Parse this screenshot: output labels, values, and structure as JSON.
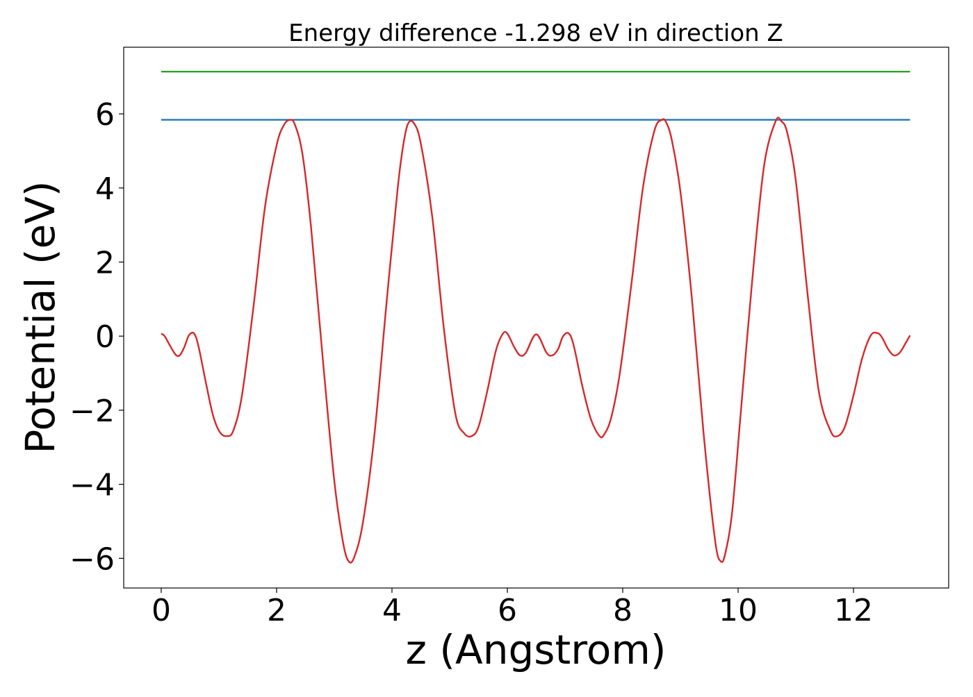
{
  "chart_data": {
    "type": "line",
    "title": "Energy difference -1.298 eV in direction Z",
    "xlabel": "z (Angstrom)",
    "ylabel": "Potential (eV)",
    "xlim": [
      -0.65,
      13.65
    ],
    "ylim": [
      -6.8,
      7.8
    ],
    "xticks": [
      0,
      2,
      4,
      6,
      8,
      10,
      12
    ],
    "yticks": [
      -6,
      -4,
      -2,
      0,
      2,
      4,
      6
    ],
    "xtick_labels": [
      "0",
      "2",
      "4",
      "6",
      "8",
      "10",
      "12"
    ],
    "ytick_labels": [
      "−6",
      "−4",
      "−2",
      "0",
      "2",
      "4",
      "6"
    ],
    "grid": false,
    "series": [
      {
        "color": "#2ca02c",
        "style": "horizontal",
        "x": [
          0,
          12.98
        ],
        "y": [
          7.14,
          7.14
        ]
      },
      {
        "color": "#1f77b4",
        "style": "horizontal",
        "x": [
          0,
          12.98
        ],
        "y": [
          5.84,
          5.84
        ]
      },
      {
        "color": "#d62728",
        "style": "smooth",
        "x": [
          0,
          0.06,
          0.15,
          0.25,
          0.32,
          0.4,
          0.48,
          0.57,
          0.65,
          0.78,
          0.9,
          1.02,
          1.14,
          1.25,
          1.4,
          1.6,
          1.8,
          2.0,
          2.12,
          2.23,
          2.32,
          2.45,
          2.6,
          2.8,
          3.0,
          3.15,
          3.25,
          3.35,
          3.5,
          3.7,
          3.9,
          4.1,
          4.2,
          4.28,
          4.38,
          4.5,
          4.7,
          4.9,
          5.1,
          5.25,
          5.38,
          5.5,
          5.65,
          5.8,
          5.92,
          6.0,
          6.12,
          6.22,
          6.32,
          6.5,
          6.68,
          6.78,
          6.88,
          6.96,
          7.06,
          7.15,
          7.3,
          7.45,
          7.6,
          7.68,
          7.8,
          7.95,
          8.15,
          8.35,
          8.55,
          8.68,
          8.75,
          8.85,
          9.0,
          9.2,
          9.4,
          9.6,
          9.7,
          9.78,
          9.9,
          10.05,
          10.25,
          10.45,
          10.65,
          10.75,
          10.85,
          11.0,
          11.2,
          11.4,
          11.6,
          11.72,
          11.85,
          12.0,
          12.15,
          12.3,
          12.42,
          12.5,
          12.6,
          12.7,
          12.8,
          12.9,
          12.98
        ],
        "y": [
          0.07,
          0.0,
          -0.25,
          -0.5,
          -0.52,
          -0.3,
          0.02,
          0.07,
          -0.3,
          -1.3,
          -2.15,
          -2.6,
          -2.7,
          -2.55,
          -1.6,
          0.8,
          3.5,
          5.15,
          5.68,
          5.84,
          5.7,
          4.9,
          2.9,
          -0.6,
          -3.9,
          -5.55,
          -6.08,
          -5.95,
          -5.0,
          -2.6,
          0.8,
          4.0,
          5.2,
          5.74,
          5.75,
          5.2,
          3.2,
          0.2,
          -2.1,
          -2.62,
          -2.7,
          -2.45,
          -1.5,
          -0.4,
          0.06,
          0.07,
          -0.3,
          -0.52,
          -0.45,
          0.05,
          -0.45,
          -0.52,
          -0.35,
          -0.02,
          0.08,
          -0.25,
          -1.35,
          -2.25,
          -2.7,
          -2.65,
          -2.2,
          -1.0,
          1.4,
          4.0,
          5.55,
          5.84,
          5.78,
          5.3,
          3.9,
          1.0,
          -2.6,
          -5.5,
          -6.08,
          -5.85,
          -4.7,
          -2.0,
          1.6,
          4.6,
          5.8,
          5.8,
          5.5,
          4.2,
          1.2,
          -1.5,
          -2.55,
          -2.7,
          -2.45,
          -1.6,
          -0.6,
          0.02,
          0.08,
          -0.05,
          -0.35,
          -0.52,
          -0.45,
          -0.2,
          0.02
        ]
      }
    ]
  }
}
